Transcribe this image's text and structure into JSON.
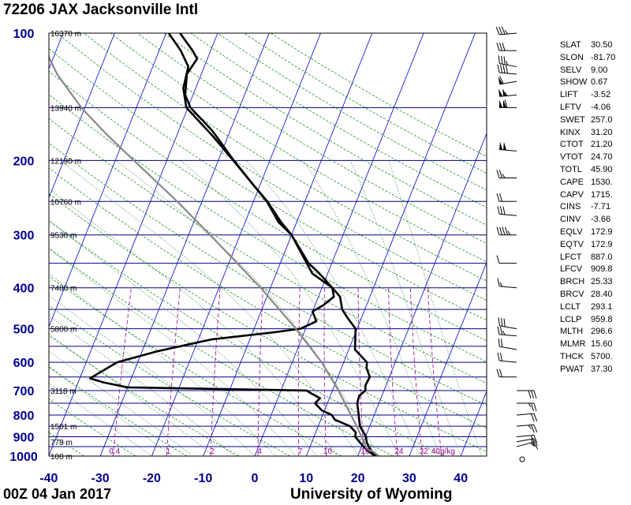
{
  "header": {
    "title": "72206 JAX Jacksonville Intl"
  },
  "footer": {
    "time": "00Z 04 Jan 2017",
    "source": "University of Wyoming"
  },
  "colors": {
    "axis_label": "#00008b",
    "isobar": "#000080",
    "isotherm": "#0000cd",
    "dry_adiabat": "#008000",
    "moist_adiabat": "#006400",
    "mixing_ratio": "#990099",
    "sounding": "#000000",
    "parcel": "#888888"
  },
  "indices": [
    {
      "name": "SLAT",
      "value": "30.50"
    },
    {
      "name": "SLON",
      "value": "-81.70"
    },
    {
      "name": "SELV",
      "value": "9.00"
    },
    {
      "name": "SHOW",
      "value": "0.67"
    },
    {
      "name": "LIFT",
      "value": "-3.52"
    },
    {
      "name": "LFTV",
      "value": "-4.06"
    },
    {
      "name": "SWET",
      "value": "257.0"
    },
    {
      "name": "KINX",
      "value": "31.20"
    },
    {
      "name": "CTOT",
      "value": "21.20"
    },
    {
      "name": "VTOT",
      "value": "24.70"
    },
    {
      "name": "TOTL",
      "value": "45.90"
    },
    {
      "name": "CAPE",
      "value": "1530."
    },
    {
      "name": "CAPV",
      "value": "1715."
    },
    {
      "name": "CINS",
      "value": "-7.71"
    },
    {
      "name": "CINV",
      "value": "-3.66"
    },
    {
      "name": "EQLV",
      "value": "172.9"
    },
    {
      "name": "EQTV",
      "value": "172.9"
    },
    {
      "name": "LFCT",
      "value": "887.0"
    },
    {
      "name": "LFCV",
      "value": "909.8"
    },
    {
      "name": "BRCH",
      "value": "25.33"
    },
    {
      "name": "BRCV",
      "value": "28.40"
    },
    {
      "name": "LCLT",
      "value": "293.1"
    },
    {
      "name": "LCLP",
      "value": "959.8"
    },
    {
      "name": "MLTH",
      "value": "296.6"
    },
    {
      "name": "MLMR",
      "value": "15.60"
    },
    {
      "name": "THCK",
      "value": "5700."
    },
    {
      "name": "PWAT",
      "value": "37.30"
    }
  ],
  "chart_data": {
    "type": "line",
    "chart_kind": "skew-T log-P sounding",
    "x_axis": {
      "ticks": [
        "-40",
        "-30",
        "-20",
        "-10",
        "0",
        "10",
        "20",
        "30",
        "40"
      ],
      "range": [
        -40,
        45
      ]
    },
    "y_axis": {
      "scale": "log",
      "range": [
        1000,
        100
      ],
      "ticks": [
        "1000",
        "900",
        "800",
        "700",
        "600",
        "500",
        "400",
        "300",
        "200",
        "100"
      ]
    },
    "height_labels": [
      {
        "p": 100,
        "label": "16370 m"
      },
      {
        "p": 150,
        "label": "13940 m"
      },
      {
        "p": 200,
        "label": "12190 m"
      },
      {
        "p": 250,
        "label": "10760 m"
      },
      {
        "p": 300,
        "label": "9530 m"
      },
      {
        "p": 400,
        "label": "7480 m"
      },
      {
        "p": 500,
        "label": "5800 m"
      },
      {
        "p": 700,
        "label": "3118 m"
      },
      {
        "p": 850,
        "label": "1501 m"
      },
      {
        "p": 925,
        "label": "778 m"
      },
      {
        "p": 1000,
        "label": "100 m"
      }
    ],
    "mixing_ratio_labels": [
      "0.4",
      "1",
      "2",
      "4",
      "7",
      "10",
      "16",
      "24",
      "32",
      "40g/kg"
    ],
    "series": [
      {
        "role": "temperature",
        "points": [
          [
            1000,
            24
          ],
          [
            975,
            22.4
          ],
          [
            950,
            21.4
          ],
          [
            925,
            20.6
          ],
          [
            900,
            20.1
          ],
          [
            850,
            18.1
          ],
          [
            800,
            17
          ],
          [
            750,
            15.8
          ],
          [
            720,
            15.6
          ],
          [
            700,
            16.4
          ],
          [
            680,
            16
          ],
          [
            650,
            16.2
          ],
          [
            620,
            14.9
          ],
          [
            600,
            14.5
          ],
          [
            560,
            11.2
          ],
          [
            500,
            9.7
          ],
          [
            470,
            7.2
          ],
          [
            450,
            5.6
          ],
          [
            420,
            4.2
          ],
          [
            400,
            2
          ],
          [
            370,
            -1.6
          ],
          [
            350,
            -4.5
          ],
          [
            300,
            -10
          ],
          [
            280,
            -13
          ],
          [
            250,
            -17.3
          ],
          [
            230,
            -21
          ],
          [
            200,
            -27
          ],
          [
            180,
            -31.2
          ],
          [
            170,
            -33.5
          ],
          [
            150,
            -39.5
          ],
          [
            140,
            -41.5
          ],
          [
            125,
            -42.8
          ],
          [
            115,
            -42
          ],
          [
            110,
            -43.5
          ],
          [
            100,
            -47.3
          ]
        ]
      },
      {
        "role": "dewpoint",
        "points": [
          [
            1000,
            23.4
          ],
          [
            975,
            21.7
          ],
          [
            950,
            20.4
          ],
          [
            925,
            19.2
          ],
          [
            900,
            18
          ],
          [
            880,
            17.8
          ],
          [
            850,
            16.2
          ],
          [
            820,
            12.7
          ],
          [
            800,
            11.8
          ],
          [
            780,
            9.5
          ],
          [
            750,
            7.6
          ],
          [
            730,
            8.2
          ],
          [
            710,
            6
          ],
          [
            700,
            5
          ],
          [
            688,
            -30
          ],
          [
            670,
            -35
          ],
          [
            655,
            -38
          ],
          [
            600,
            -34
          ],
          [
            565,
            -27
          ],
          [
            530,
            -17.5
          ],
          [
            510,
            -6
          ],
          [
            500,
            -1
          ],
          [
            480,
            1.5
          ],
          [
            455,
            0
          ],
          [
            440,
            1.6
          ],
          [
            420,
            3
          ],
          [
            400,
            2
          ],
          [
            370,
            -3
          ],
          [
            300,
            -10
          ],
          [
            280,
            -13.5
          ],
          [
            250,
            -17.4
          ],
          [
            200,
            -27.1
          ],
          [
            175,
            -33
          ],
          [
            150,
            -40.3
          ],
          [
            135,
            -42.4
          ],
          [
            120,
            -43.1
          ],
          [
            110,
            -45.8
          ],
          [
            100,
            -49.5
          ]
        ]
      },
      {
        "role": "parcel",
        "points": [
          [
            1000,
            24
          ],
          [
            975,
            22.6
          ],
          [
            959.8,
            21.1
          ],
          [
            925,
            20.1
          ],
          [
            900,
            19.2
          ],
          [
            850,
            17.5
          ],
          [
            800,
            15.5
          ],
          [
            700,
            11.2
          ],
          [
            600,
            5.7
          ],
          [
            500,
            -1.9
          ],
          [
            400,
            -11.9
          ],
          [
            300,
            -25.8
          ],
          [
            250,
            -34.8
          ],
          [
            200,
            -46.4
          ],
          [
            172.9,
            -53.9
          ],
          [
            150,
            -60.7
          ],
          [
            125,
            -68
          ],
          [
            100,
            -75
          ]
        ]
      }
    ],
    "wind_barbs": [
      {
        "p": 1000,
        "dir": 0,
        "spd": 0
      },
      {
        "p": 950,
        "dir": 75,
        "spd": 15
      },
      {
        "p": 925,
        "dir": 80,
        "spd": 20
      },
      {
        "p": 900,
        "dir": 85,
        "spd": 20
      },
      {
        "p": 850,
        "dir": 85,
        "spd": 25
      },
      {
        "p": 800,
        "dir": 85,
        "spd": 20
      },
      {
        "p": 750,
        "dir": 90,
        "spd": 25
      },
      {
        "p": 700,
        "dir": 90,
        "spd": 30
      },
      {
        "p": 650,
        "dir": 270,
        "spd": 20
      },
      {
        "p": 600,
        "dir": 275,
        "spd": 20
      },
      {
        "p": 560,
        "dir": 280,
        "spd": 20
      },
      {
        "p": 520,
        "dir": 275,
        "spd": 25
      },
      {
        "p": 500,
        "dir": 280,
        "spd": 30
      },
      {
        "p": 400,
        "dir": 275,
        "spd": 15
      },
      {
        "p": 350,
        "dir": 270,
        "spd": 10
      },
      {
        "p": 300,
        "dir": 270,
        "spd": 45
      },
      {
        "p": 270,
        "dir": 275,
        "spd": 30
      },
      {
        "p": 250,
        "dir": 270,
        "spd": 20
      },
      {
        "p": 220,
        "dir": 270,
        "spd": 25
      },
      {
        "p": 190,
        "dir": 275,
        "spd": 100
      },
      {
        "p": 150,
        "dir": 270,
        "spd": 110
      },
      {
        "p": 140,
        "dir": 265,
        "spd": 105
      },
      {
        "p": 130,
        "dir": 260,
        "spd": 60
      },
      {
        "p": 125,
        "dir": 275,
        "spd": 40
      },
      {
        "p": 120,
        "dir": 280,
        "spd": 35
      },
      {
        "p": 110,
        "dir": 270,
        "spd": 30
      },
      {
        "p": 100,
        "dir": 265,
        "spd": 35
      }
    ]
  }
}
